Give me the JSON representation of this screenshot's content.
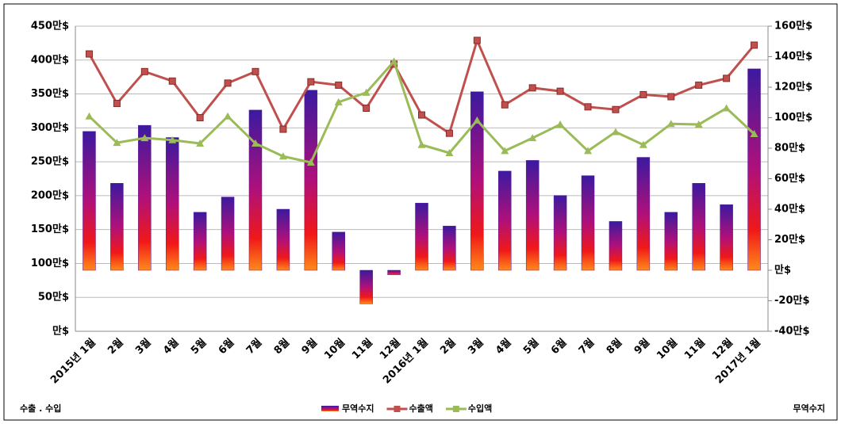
{
  "chart_data": {
    "type": "bar-line",
    "categories": [
      "2015년 1월",
      "2월",
      "3월",
      "4월",
      "5월",
      "6월",
      "7월",
      "8월",
      "9월",
      "10월",
      "11월",
      "12월",
      "2016년 1월",
      "2월",
      "3월",
      "4월",
      "5월",
      "6월",
      "7월",
      "8월",
      "9월",
      "10월",
      "11월",
      "12월",
      "2017년 1월"
    ],
    "y_label": "수출 . 수입",
    "y2_label": "무역수지",
    "ylim": [
      0,
      450
    ],
    "yticks": [
      {
        "value": 0,
        "label": "만$"
      },
      {
        "value": 50,
        "label": "50만$"
      },
      {
        "value": 100,
        "label": "100만$"
      },
      {
        "value": 150,
        "label": "150만$"
      },
      {
        "value": 200,
        "label": "200만$"
      },
      {
        "value": 250,
        "label": "250만$"
      },
      {
        "value": 300,
        "label": "300만$"
      },
      {
        "value": 350,
        "label": "350만$"
      },
      {
        "value": 400,
        "label": "400만$"
      },
      {
        "value": 450,
        "label": "450만$"
      }
    ],
    "y2lim": [
      -40,
      160
    ],
    "y2ticks": [
      {
        "value": -40,
        "label": "-40만$"
      },
      {
        "value": -20,
        "label": "-20만$"
      },
      {
        "value": 0,
        "label": "만$"
      },
      {
        "value": 20,
        "label": "20만$"
      },
      {
        "value": 40,
        "label": "40만$"
      },
      {
        "value": 60,
        "label": "60만$"
      },
      {
        "value": 80,
        "label": "80만$"
      },
      {
        "value": 100,
        "label": "100만$"
      },
      {
        "value": 120,
        "label": "120만$"
      },
      {
        "value": 140,
        "label": "140만$"
      },
      {
        "value": 160,
        "label": "160만$"
      }
    ],
    "grid": true,
    "series": [
      {
        "name": "무역수지",
        "type": "bar",
        "axis": "y2",
        "color": "#5a1a9a",
        "values": [
          91,
          57,
          95,
          87,
          38,
          48,
          105,
          40,
          118,
          25,
          -22,
          -3,
          44,
          29,
          117,
          65,
          72,
          49,
          62,
          32,
          74,
          38,
          57,
          43,
          132
        ]
      },
      {
        "name": "수출액",
        "type": "line",
        "color": "#c0504d",
        "values": [
          409,
          336,
          383,
          369,
          315,
          366,
          383,
          298,
          368,
          363,
          329,
          394,
          319,
          292,
          429,
          334,
          359,
          354,
          331,
          327,
          349,
          346,
          363,
          373,
          422
        ]
      },
      {
        "name": "수입액",
        "type": "line",
        "color": "#9bbb59",
        "values": [
          317,
          278,
          285,
          282,
          277,
          317,
          277,
          258,
          249,
          338,
          352,
          398,
          275,
          263,
          311,
          266,
          285,
          305,
          266,
          294,
          275,
          306,
          305,
          329,
          291
        ]
      }
    ]
  }
}
